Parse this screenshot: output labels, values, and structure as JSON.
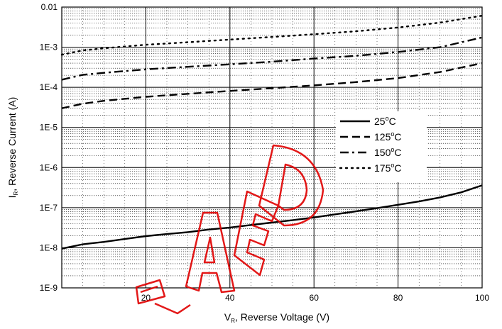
{
  "chart_data": {
    "type": "line",
    "title": "",
    "xlabel": {
      "main": "V",
      "sub": "R",
      "rest": ", Reverse Voltage (V)"
    },
    "ylabel": {
      "main": "I",
      "sub": "R",
      "rest": ", Reverse Current (A)"
    },
    "x_scale": "linear",
    "y_scale": "log",
    "xlim": [
      0,
      100
    ],
    "ylim": [
      1e-09,
      0.01
    ],
    "x_ticks": [
      20,
      40,
      60,
      80,
      100
    ],
    "x_tick_labels": [
      "20",
      "40",
      "60",
      "80",
      "100"
    ],
    "y_ticks": [
      1e-09,
      1e-08,
      1e-07,
      1e-06,
      1e-05,
      0.0001,
      0.001,
      0.01
    ],
    "y_tick_labels": [
      "1E-9",
      "1E-8",
      "1E-7",
      "1E-6",
      "1E-5",
      "1E-4",
      "1E-3",
      "0.01"
    ],
    "grid": {
      "major_x": true,
      "major_y": true,
      "minor_y": true
    },
    "legend": {
      "placement": "center-right"
    },
    "series": [
      {
        "name": "25°C",
        "label_value": "25",
        "label_unit": "C",
        "style": "solid",
        "x": [
          0,
          1,
          5,
          10,
          15,
          20,
          25,
          30,
          35,
          40,
          45,
          50,
          55,
          60,
          65,
          70,
          75,
          80,
          85,
          90,
          95,
          100
        ],
        "y": [
          9.5e-09,
          1e-08,
          1.22e-08,
          1.4e-08,
          1.65e-08,
          1.95e-08,
          2.2e-08,
          2.45e-08,
          2.85e-08,
          3.2e-08,
          3.7e-08,
          4.25e-08,
          4.9e-08,
          5.7e-08,
          6.8e-08,
          8.1e-08,
          9.7e-08,
          1.18e-07,
          1.43e-07,
          1.8e-07,
          2.4e-07,
          3.6e-07
        ]
      },
      {
        "name": "125°C",
        "label_value": "125",
        "label_unit": "C",
        "style": "dashed",
        "x": [
          0,
          5,
          10,
          20,
          30,
          40,
          50,
          60,
          70,
          80,
          90,
          100
        ],
        "y": [
          3e-05,
          3.9e-05,
          4.6e-05,
          5.8e-05,
          6.9e-05,
          8.1e-05,
          9.5e-05,
          0.000112,
          0.000135,
          0.00017,
          0.00024,
          0.0004
        ]
      },
      {
        "name": "150°C",
        "label_value": "150",
        "label_unit": "C",
        "style": "dashdot",
        "x": [
          0,
          5,
          10,
          20,
          30,
          40,
          50,
          60,
          70,
          80,
          90,
          100
        ],
        "y": [
          0.000155,
          0.000205,
          0.00023,
          0.00028,
          0.000325,
          0.000375,
          0.000435,
          0.00052,
          0.00061,
          0.00076,
          0.001,
          0.00175
        ]
      },
      {
        "name": "175°C",
        "label_value": "175",
        "label_unit": "C",
        "style": "dotted",
        "x": [
          0,
          5,
          10,
          20,
          30,
          40,
          50,
          60,
          70,
          80,
          90,
          100
        ],
        "y": [
          0.00065,
          0.00083,
          0.00094,
          0.00115,
          0.00133,
          0.00155,
          0.0018,
          0.0021,
          0.0025,
          0.0031,
          0.0041,
          0.0061
        ]
      }
    ]
  }
}
